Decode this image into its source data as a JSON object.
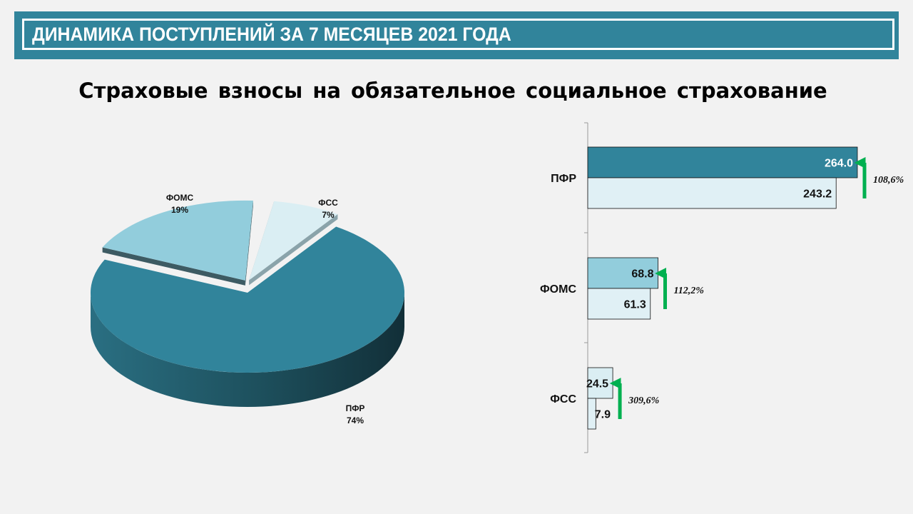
{
  "header": {
    "title": "ДИНАМИКА ПОСТУПЛЕНИЙ ЗА 7 МЕСЯЦЕВ 2021 ГОДА"
  },
  "subtitle": "Страховые взносы на обязательное социальное страхование",
  "colors": {
    "header_bg": "#31849b",
    "pfr": "#31849b",
    "foms": "#92cddc",
    "fss": "#daeef3",
    "prev": "#e0f0f5",
    "arrow": "#00b050"
  },
  "chart_data": [
    {
      "type": "pie",
      "title": "",
      "legend": "none",
      "slices": [
        {
          "name": "ПФР",
          "percent_label": "74%",
          "value": 74
        },
        {
          "name": "ФОМС",
          "percent_label": "19%",
          "value": 19
        },
        {
          "name": "ФСС",
          "percent_label": "7%",
          "value": 7
        }
      ]
    },
    {
      "type": "bar",
      "orientation": "horizontal",
      "title": "",
      "xlim": [
        0,
        264
      ],
      "grid": false,
      "legend": "none",
      "categories": [
        "ПФР",
        "ФОМС",
        "ФСС"
      ],
      "series": [
        {
          "values": [
            264.0,
            68.8,
            24.5
          ],
          "value_labels": [
            "264.0",
            "68.8",
            "24.5"
          ]
        },
        {
          "values": [
            243.2,
            61.3,
            7.9
          ],
          "value_labels": [
            "243.2",
            "61.3",
            "7.9"
          ]
        }
      ],
      "growth": [
        {
          "label": "108,6%",
          "direction": "up"
        },
        {
          "label": "112,2%",
          "direction": "up"
        },
        {
          "label": "309,6%",
          "direction": "up"
        }
      ]
    }
  ]
}
